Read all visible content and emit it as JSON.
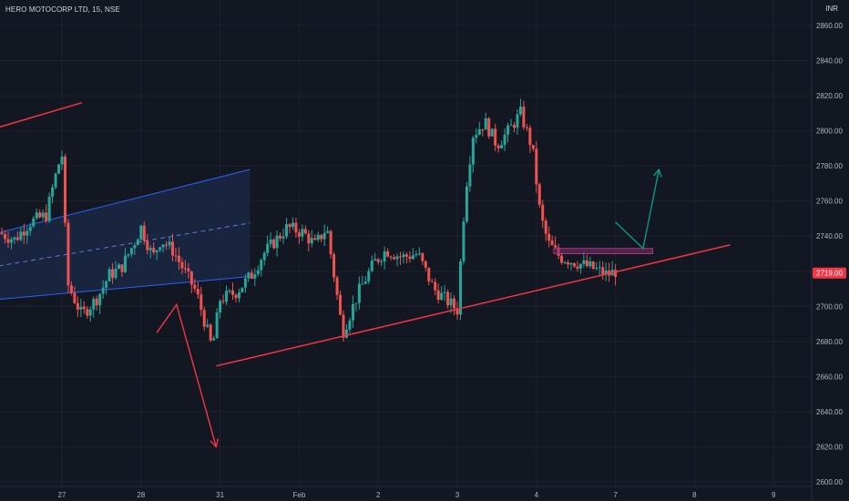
{
  "header": {
    "symbol_line": "HERO MOTOCORP LTD, 15, NSE",
    "currency": "INR"
  },
  "colors": {
    "background": "#131722",
    "grid": "#1e222d",
    "up": "#26a69a",
    "down": "#ef5350",
    "axis_text": "#b2b5be",
    "trendline": "#f23645",
    "channel_fill": "#1c2a4a",
    "channel_line": "#2962ff",
    "channel_mid": "#5b7bd5",
    "projection_up": "#089981",
    "zone": "#7b2d6e",
    "price_label_bg": "#f23645"
  },
  "chart_data": {
    "type": "candlestick",
    "y_ticks": [
      "2600.00",
      "2620.00",
      "2640.00",
      "2660.00",
      "2680.00",
      "2700.00",
      "2720.00",
      "2740.00",
      "2760.00",
      "2780.00",
      "2800.00",
      "2820.00",
      "2840.00",
      "2860.00"
    ],
    "ylim": [
      2600,
      2866
    ],
    "x_ticks": [
      {
        "label": "27",
        "t": 0
      },
      {
        "label": "28",
        "t": 1
      },
      {
        "label": "31",
        "t": 2
      },
      {
        "label": "Feb",
        "t": 3
      },
      {
        "label": "2",
        "t": 4
      },
      {
        "label": "3",
        "t": 5
      },
      {
        "label": "4",
        "t": 6
      },
      {
        "label": "7",
        "t": 7
      },
      {
        "label": "8",
        "t": 8
      },
      {
        "label": "9",
        "t": 9
      }
    ],
    "last_price": "2719.00",
    "anchors": [
      {
        "t": -0.8,
        "p": 2742
      },
      {
        "t": -0.6,
        "p": 2738
      },
      {
        "t": -0.4,
        "p": 2748
      },
      {
        "t": -0.2,
        "p": 2752
      },
      {
        "t": -0.05,
        "p": 2780
      },
      {
        "t": 0.0,
        "p": 2786
      },
      {
        "t": 0.02,
        "p": 2760
      },
      {
        "t": 0.08,
        "p": 2712
      },
      {
        "t": 0.25,
        "p": 2695
      },
      {
        "t": 0.45,
        "p": 2705
      },
      {
        "t": 0.6,
        "p": 2718
      },
      {
        "t": 0.75,
        "p": 2722
      },
      {
        "t": 0.9,
        "p": 2735
      },
      {
        "t": 1.0,
        "p": 2745
      },
      {
        "t": 1.15,
        "p": 2728
      },
      {
        "t": 1.25,
        "p": 2738
      },
      {
        "t": 1.4,
        "p": 2732
      },
      {
        "t": 1.55,
        "p": 2720
      },
      {
        "t": 1.7,
        "p": 2708
      },
      {
        "t": 1.9,
        "p": 2676
      },
      {
        "t": 2.0,
        "p": 2704
      },
      {
        "t": 2.2,
        "p": 2708
      },
      {
        "t": 2.4,
        "p": 2718
      },
      {
        "t": 2.55,
        "p": 2730
      },
      {
        "t": 2.75,
        "p": 2740
      },
      {
        "t": 2.85,
        "p": 2745
      },
      {
        "t": 3.05,
        "p": 2742
      },
      {
        "t": 3.2,
        "p": 2735
      },
      {
        "t": 3.35,
        "p": 2745
      },
      {
        "t": 3.55,
        "p": 2685
      },
      {
        "t": 3.75,
        "p": 2708
      },
      {
        "t": 3.95,
        "p": 2725
      },
      {
        "t": 4.1,
        "p": 2732
      },
      {
        "t": 4.3,
        "p": 2728
      },
      {
        "t": 4.5,
        "p": 2730
      },
      {
        "t": 4.7,
        "p": 2710
      },
      {
        "t": 4.9,
        "p": 2702
      },
      {
        "t": 5.0,
        "p": 2698
      },
      {
        "t": 5.1,
        "p": 2765
      },
      {
        "t": 5.2,
        "p": 2798
      },
      {
        "t": 5.35,
        "p": 2805
      },
      {
        "t": 5.5,
        "p": 2792
      },
      {
        "t": 5.65,
        "p": 2800
      },
      {
        "t": 5.8,
        "p": 2810
      },
      {
        "t": 5.95,
        "p": 2790
      },
      {
        "t": 6.05,
        "p": 2752
      },
      {
        "t": 6.15,
        "p": 2736
      },
      {
        "t": 6.3,
        "p": 2728
      },
      {
        "t": 6.5,
        "p": 2725
      },
      {
        "t": 6.7,
        "p": 2722
      },
      {
        "t": 6.9,
        "p": 2718
      },
      {
        "t": 7.0,
        "p": 2720
      }
    ],
    "trendlines": [
      {
        "t1": -0.8,
        "p1": 2802,
        "t2": 0.25,
        "p2": 2816
      },
      {
        "t1": 1.95,
        "p1": 2666,
        "t2": 8.45,
        "p2": 2735
      }
    ],
    "channel": {
      "t1": -0.8,
      "p1_upper": 2742,
      "p1_lower": 2704,
      "t2": 2.38,
      "p2_upper": 2778,
      "p2_lower": 2717
    },
    "zone": {
      "t1": 6.22,
      "t2": 7.47,
      "p_top": 2733,
      "p_bottom": 2730
    },
    "projection_down": [
      {
        "t": 1.2,
        "p": 2685
      },
      {
        "t": 1.45,
        "p": 2701
      },
      {
        "t": 1.95,
        "p": 2620
      }
    ],
    "projection_up": [
      {
        "t": 7.0,
        "p": 2748
      },
      {
        "t": 7.35,
        "p": 2733
      },
      {
        "t": 7.55,
        "p": 2778
      }
    ]
  }
}
